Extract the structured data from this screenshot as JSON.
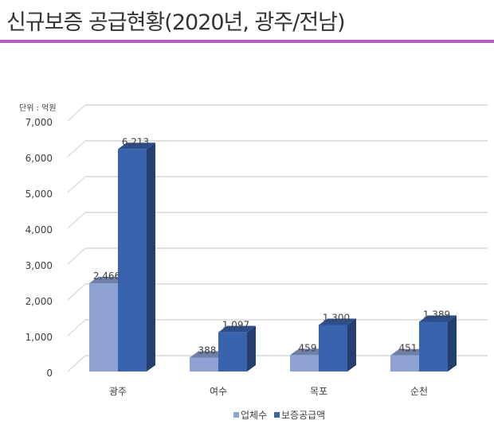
{
  "title": "신규보증 공급현황(2020년, 광주/전남)",
  "chart_data": {
    "type": "bar",
    "title": "신규보증 공급현황(2020년, 광주/전남)",
    "unit_label": "단위 : 억원",
    "categories": [
      "광주",
      "여수",
      "목포",
      "순천"
    ],
    "series": [
      {
        "name": "업체수",
        "values": [
          2466,
          388,
          459,
          451
        ],
        "labels": [
          "2,466",
          "388",
          "459",
          "451"
        ],
        "color": "#8fa2d4",
        "top": "#6f7fa6",
        "side": "#6f7fa6"
      },
      {
        "name": "보증공급액",
        "values": [
          6213,
          1097,
          1300,
          1389
        ],
        "labels": [
          "6,213",
          "1,097",
          "1,300",
          "1,389"
        ],
        "color": "#3a63ae",
        "top": "#2d4e8c",
        "side": "#243f70"
      }
    ],
    "ylim": [
      0,
      7000
    ],
    "yticks": [
      0,
      1000,
      2000,
      3000,
      4000,
      5000,
      6000,
      7000
    ],
    "ytick_labels": [
      "0",
      "1,000",
      "2,000",
      "3,000",
      "4,000",
      "5,000",
      "6,000",
      "7,000"
    ],
    "grid": true,
    "legend": "bottom"
  }
}
